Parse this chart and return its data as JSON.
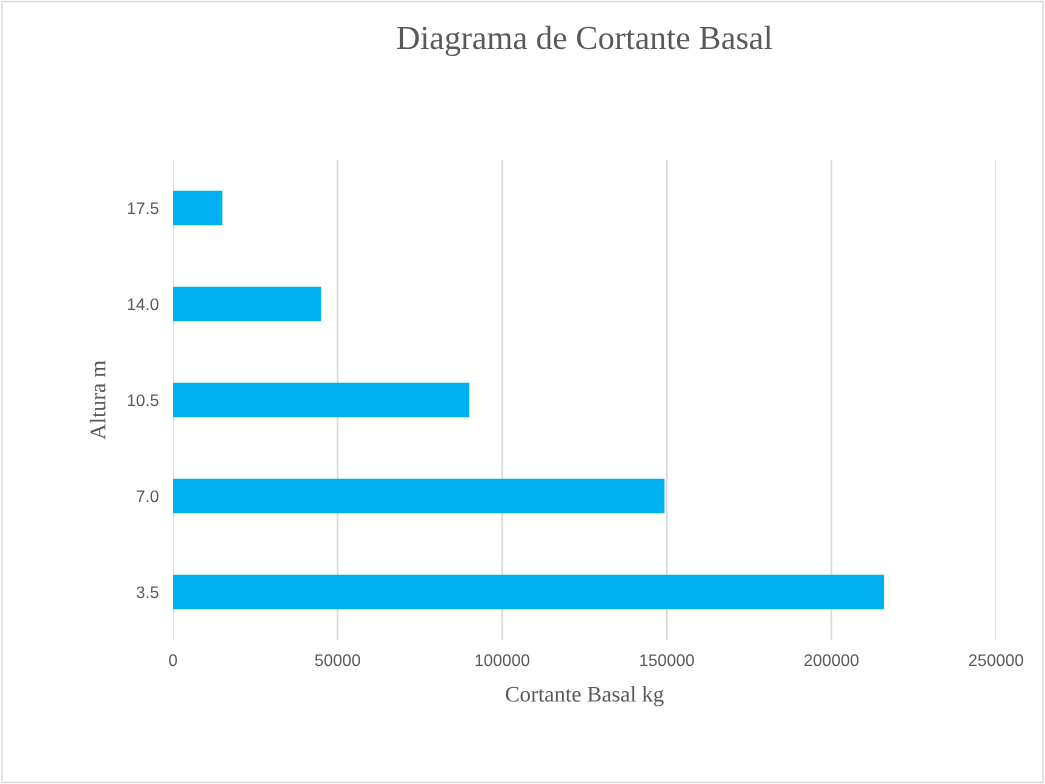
{
  "chart_data": {
    "type": "bar",
    "orientation": "horizontal",
    "title": "Diagrama de Cortante Basal",
    "xlabel": "Cortante Basal kg",
    "ylabel": "Altura m",
    "categories": [
      "17.5",
      "14.0",
      "10.5",
      "7.0",
      "3.5"
    ],
    "values": [
      15000,
      45000,
      90000,
      149300,
      216000
    ],
    "color": "#00b0f0",
    "xlim": [
      0,
      250000
    ],
    "xticks": [
      0,
      50000,
      100000,
      150000,
      200000,
      250000
    ],
    "grid": "x",
    "legend": false
  }
}
